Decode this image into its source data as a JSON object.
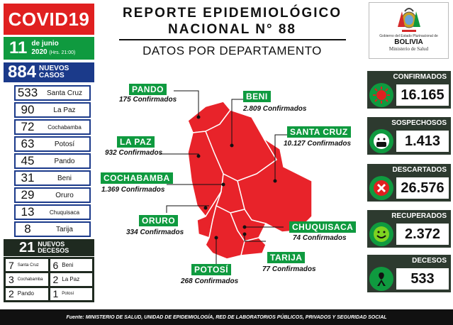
{
  "brand": {
    "title": "COVID19",
    "red": "#e02020",
    "green": "#0f9a3f",
    "blue": "#1b3a8a"
  },
  "date": {
    "day": "11",
    "month": "de junio",
    "year": "2020",
    "time": "(Hrs. 21:00)"
  },
  "new_cases": {
    "count": "884",
    "label1": "NUEVOS",
    "label2": "CASOS"
  },
  "departments_cases": [
    {
      "count": "533",
      "name": "Santa Cruz"
    },
    {
      "count": "90",
      "name": "La Paz"
    },
    {
      "count": "72",
      "name": "Cochabamba"
    },
    {
      "count": "63",
      "name": "Potosí"
    },
    {
      "count": "45",
      "name": "Pando"
    },
    {
      "count": "31",
      "name": "Beni"
    },
    {
      "count": "29",
      "name": "Oruro"
    },
    {
      "count": "13",
      "name": "Chuquisaca"
    },
    {
      "count": "8",
      "name": "Tarija"
    }
  ],
  "new_deaths": {
    "count": "21",
    "label1": "NUEVOS",
    "label2": "DECESOS"
  },
  "deaths_by_dept": [
    {
      "count": "7",
      "name": "Santa Cruz"
    },
    {
      "count": "6",
      "name": "Beni"
    },
    {
      "count": "3",
      "name": "Cochabamba"
    },
    {
      "count": "2",
      "name": "La Paz"
    },
    {
      "count": "2",
      "name": "Pando"
    },
    {
      "count": "1",
      "name": "Potosí"
    }
  ],
  "header": {
    "line1": "REPORTE EPIDEMIOLÓGICO",
    "line2": "NACIONAL N° 88",
    "subtitle": "DATOS POR DEPARTAMENTO"
  },
  "logo": {
    "gov": "Gobierno del Estado Plurinacional de",
    "country": "BOLIVIA",
    "ministry": "Ministerio de Salud"
  },
  "map": {
    "pando": {
      "name": "PANDO",
      "conf": "175 Confirmados"
    },
    "beni": {
      "name": "BENI",
      "conf": "2.809 Confirmados"
    },
    "lapaz": {
      "name": "LA PAZ",
      "conf": "932 Confirmados"
    },
    "santacruz": {
      "name": "SANTA CRUZ",
      "conf": "10.127 Confirmados"
    },
    "cochabamba": {
      "name": "COCHABAMBA",
      "conf": "1.369 Confirmados"
    },
    "oruro": {
      "name": "ORURO",
      "conf": "334 Confirmados"
    },
    "chuquisaca": {
      "name": "CHUQUISACA",
      "conf": "74 Confirmados"
    },
    "tarija": {
      "name": "TARIJA",
      "conf": "77 Confirmados"
    },
    "potosi": {
      "name": "POTOSÍ",
      "conf": "268 Confirmados"
    }
  },
  "stats": {
    "confirmados": {
      "label": "CONFIRMADOS",
      "value": "16.165",
      "icon": "virus-icon"
    },
    "sospechosos": {
      "label": "SOSPECHOSOS",
      "value": "1.413",
      "icon": "mask-face-icon"
    },
    "descartados": {
      "label": "DESCARTADOS",
      "value": "26.576",
      "icon": "x-mark-icon"
    },
    "recuperados": {
      "label": "RECUPERADOS",
      "value": "2.372",
      "icon": "smile-icon"
    },
    "decesos": {
      "label": "DECESOS",
      "value": "533",
      "icon": "mourning-ribbon-icon"
    }
  },
  "footer": "Fuente: MINISTERIO DE SALUD, UNIDAD DE EPIDEMIOLOGÍA, RED DE LABORATORIOS PÚBLICOS, PRIVADOS Y SEGURIDAD SOCIAL"
}
